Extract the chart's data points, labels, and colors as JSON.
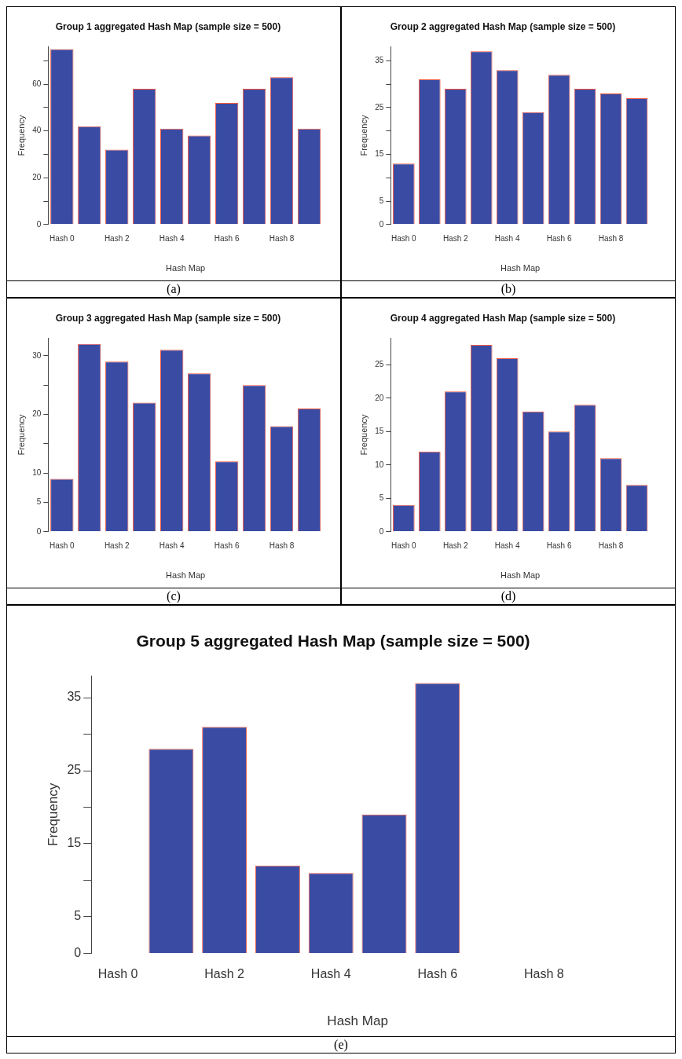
{
  "chart_data": [
    {
      "type": "bar",
      "title": "Group 1 aggregated Hash Map (sample size = 500)",
      "xlabel": "Hash Map",
      "ylabel": "Frequency",
      "categories": [
        "Hash 0",
        null,
        "Hash 2",
        null,
        "Hash 4",
        null,
        "Hash 6",
        null,
        "Hash 8",
        null
      ],
      "values": [
        75,
        42,
        32,
        58,
        41,
        38,
        52,
        58,
        63,
        41
      ],
      "color": "#3a4ba3",
      "ylim": [
        0,
        76
      ],
      "yticks": [
        0,
        {
          "value": 10,
          "label": null
        },
        20,
        {
          "value": 30,
          "label": null
        },
        40,
        {
          "value": 50,
          "label": null
        },
        60,
        {
          "value": 70,
          "label": null
        }
      ],
      "grid": false,
      "legend": false,
      "annotations": [
        "(a)"
      ]
    },
    {
      "type": "bar",
      "title": "Group 2 aggregated Hash Map (sample size = 500)",
      "xlabel": "Hash Map",
      "ylabel": "Frequency",
      "categories": [
        "Hash 0",
        null,
        "Hash 2",
        null,
        "Hash 4",
        null,
        "Hash 6",
        null,
        "Hash 8",
        null
      ],
      "values": [
        13,
        31,
        29,
        37,
        33,
        24,
        32,
        29,
        28,
        27
      ],
      "color": "#3a4ba3",
      "ylim": [
        0,
        38
      ],
      "yticks": [
        0,
        5,
        {
          "value": 10,
          "label": null
        },
        15,
        {
          "value": 20,
          "label": null
        },
        25,
        {
          "value": 30,
          "label": null
        },
        35
      ],
      "grid": false,
      "legend": false,
      "annotations": [
        "(b)"
      ]
    },
    {
      "type": "bar",
      "title": "Group 3 aggregated Hash Map (sample size = 500)",
      "xlabel": "Hash Map",
      "ylabel": "Frequency",
      "categories": [
        "Hash 0",
        null,
        "Hash 2",
        null,
        "Hash 4",
        null,
        "Hash 6",
        null,
        "Hash 8",
        null
      ],
      "values": [
        9,
        32,
        29,
        22,
        31,
        27,
        12,
        25,
        18,
        21
      ],
      "color": "#3a4ba3",
      "ylim": [
        0,
        33
      ],
      "yticks": [
        0,
        5,
        10,
        {
          "value": 15,
          "label": null
        },
        20,
        {
          "value": 25,
          "label": null
        },
        30
      ],
      "grid": false,
      "legend": false,
      "annotations": [
        "(c)"
      ]
    },
    {
      "type": "bar",
      "title": "Group 4 aggregated Hash Map (sample size = 500)",
      "xlabel": "Hash Map",
      "ylabel": "Frequency",
      "categories": [
        "Hash 0",
        null,
        "Hash 2",
        null,
        "Hash 4",
        null,
        "Hash 6",
        null,
        "Hash 8",
        null
      ],
      "values": [
        4,
        12,
        21,
        28,
        26,
        18,
        15,
        19,
        11,
        7
      ],
      "color": "#3a4ba3",
      "ylim": [
        0,
        29
      ],
      "yticks": [
        0,
        5,
        10,
        15,
        20,
        25
      ],
      "grid": false,
      "legend": false,
      "annotations": [
        "(d)"
      ]
    },
    {
      "type": "bar",
      "title": "Group 5 aggregated Hash Map (sample size = 500)",
      "xlabel": "Hash Map",
      "ylabel": "Frequency",
      "categories": [
        "Hash 0",
        null,
        "Hash 2",
        null,
        "Hash 4",
        null,
        "Hash 6",
        null,
        "Hash 8",
        null
      ],
      "values": [
        0,
        28,
        31,
        12,
        11,
        19,
        37,
        0,
        0,
        0
      ],
      "color": "#3a4ba3",
      "ylim": [
        0,
        38
      ],
      "yticks": [
        0,
        5,
        {
          "value": 10,
          "label": null
        },
        15,
        {
          "value": 20,
          "label": null
        },
        25,
        {
          "value": 30,
          "label": null
        },
        35
      ],
      "grid": false,
      "legend": false,
      "annotations": [
        "(e)"
      ]
    }
  ]
}
